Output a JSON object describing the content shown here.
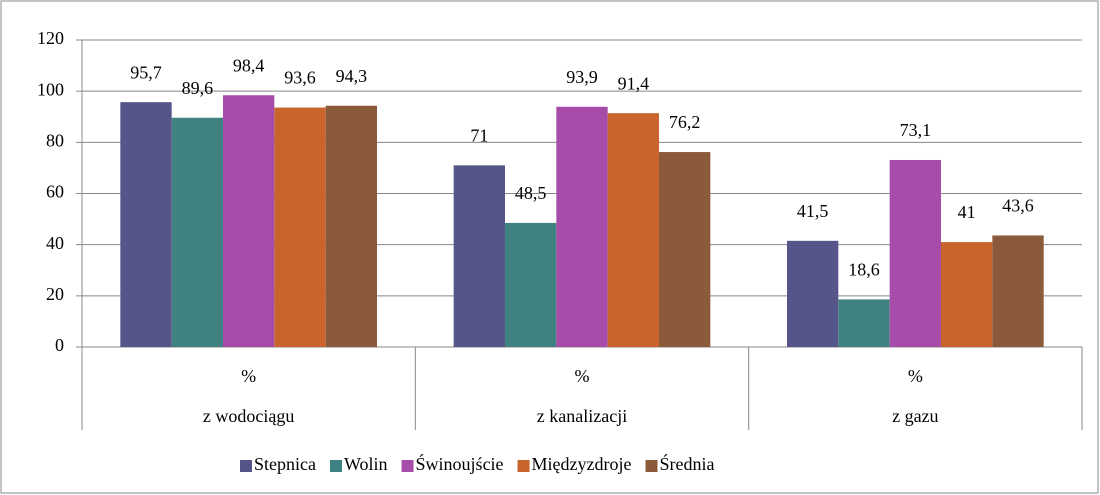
{
  "chart_data": {
    "type": "bar",
    "categories": [
      "z wodociągu",
      "z kanalizacji",
      "z gazu"
    ],
    "category_units": [
      "%",
      "%",
      "%"
    ],
    "series": [
      {
        "name": "Stepnica",
        "color": "#55558a",
        "values": [
          95.7,
          71,
          41.5
        ],
        "value_labels": [
          "95,7",
          "71",
          "41,5"
        ]
      },
      {
        "name": "Wolin",
        "color": "#408182",
        "values": [
          89.6,
          48.5,
          18.6
        ],
        "value_labels": [
          "89,6",
          "48,5",
          "18,6"
        ]
      },
      {
        "name": "Świnoujście",
        "color": "#a74ca8",
        "values": [
          98.4,
          93.9,
          73.1
        ],
        "value_labels": [
          "98,4",
          "93,9",
          "73,1"
        ]
      },
      {
        "name": "Międzyzdroje",
        "color": "#c8642c",
        "values": [
          93.6,
          91.4,
          41
        ],
        "value_labels": [
          "93,6",
          "91,4",
          "41"
        ]
      },
      {
        "name": "Średnia",
        "color": "#8b5a3a",
        "values": [
          94.3,
          76.2,
          43.6
        ],
        "value_labels": [
          "94,3",
          "76,2",
          "43,6"
        ]
      }
    ],
    "ylim": [
      0,
      120
    ],
    "yticks": [
      0,
      20,
      40,
      60,
      80,
      100,
      120
    ],
    "grid": true,
    "legend": "bottom"
  }
}
